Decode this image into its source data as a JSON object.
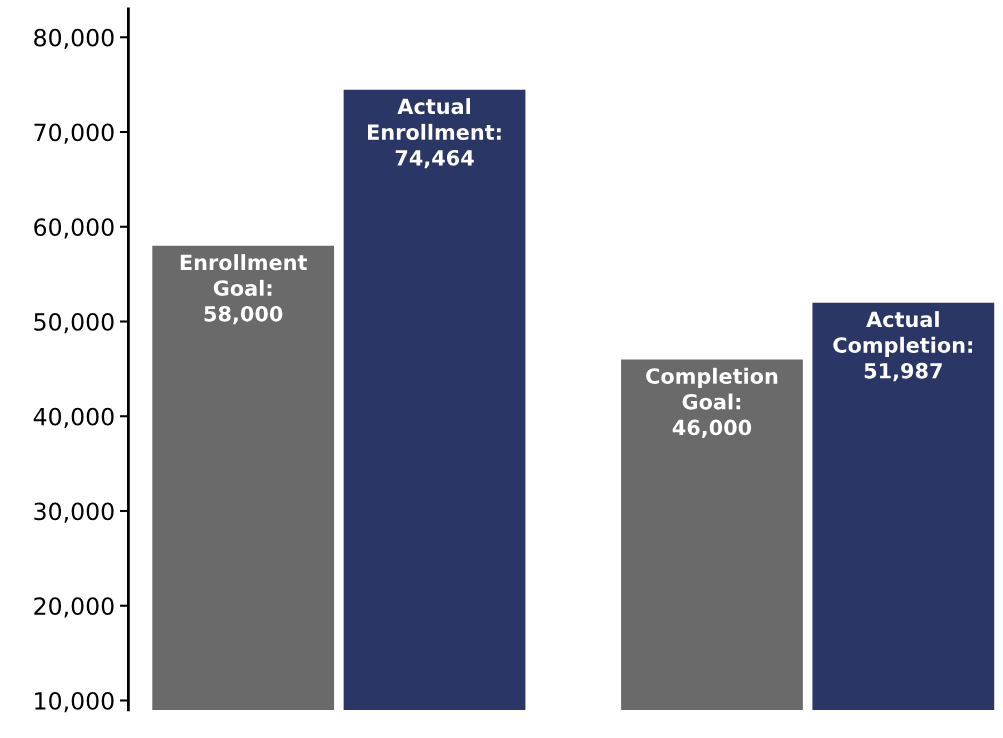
{
  "chart_data": {
    "type": "bar",
    "categories": [
      null,
      null,
      null,
      null
    ],
    "series": [
      {
        "colors": [
          "#6a6a6a",
          "#2a3766",
          "#6a6a6a",
          "#2a3766"
        ],
        "values": [
          58000,
          74464,
          46000,
          51987
        ],
        "value_labels": [
          "Enrollment\nGoal:\n58,000",
          "Actual\nEnrollment:\n74,464",
          "Completion\nGoal:\n46,000",
          "Actual\nCompletion:\n51,987"
        ]
      }
    ],
    "ylim": [
      9000,
      83000
    ],
    "yticks": [
      {
        "value": 10000,
        "label": "10,000"
      },
      {
        "value": 20000,
        "label": "20,000"
      },
      {
        "value": 30000,
        "label": "30,000"
      },
      {
        "value": 40000,
        "label": "40,000"
      },
      {
        "value": 50000,
        "label": "50,000"
      },
      {
        "value": 60000,
        "label": "60,000"
      },
      {
        "value": 70000,
        "label": "70,000"
      },
      {
        "value": 80000,
        "label": "80,000"
      }
    ],
    "grid": false,
    "legend": false
  }
}
